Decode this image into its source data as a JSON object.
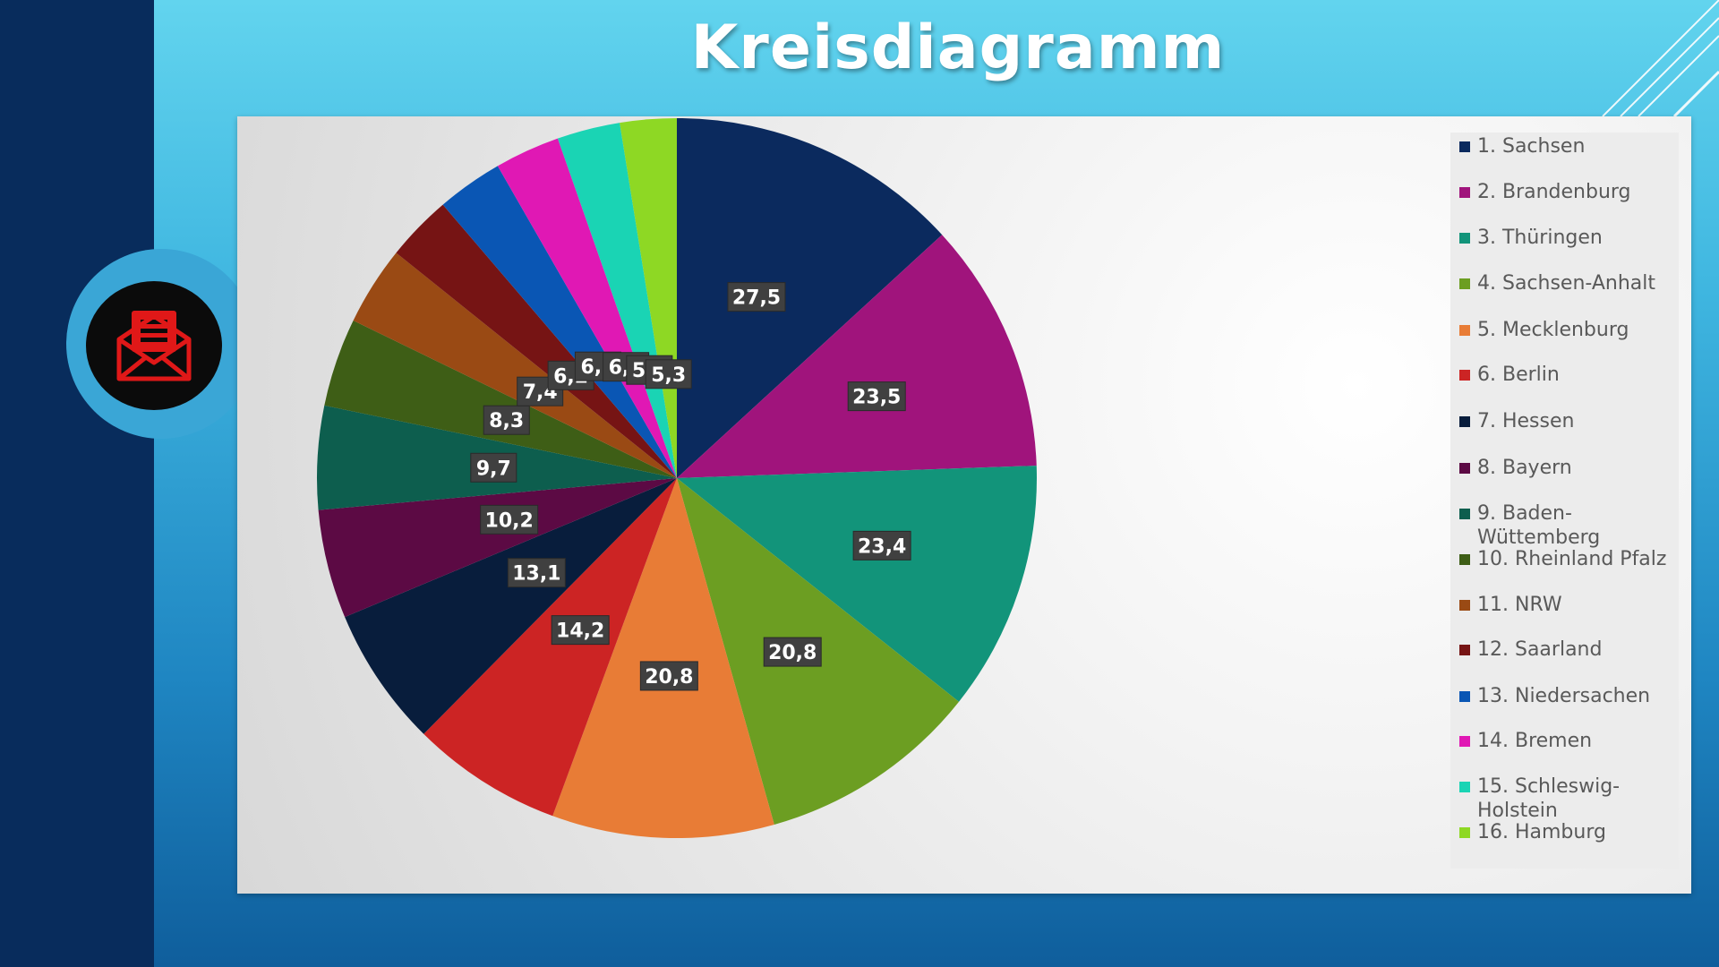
{
  "slide": {
    "title": "Kreisdiagramm",
    "icon": "envelope-letter-icon"
  },
  "colors": {
    "accent_icon": "#e01818",
    "band": "#082c5c"
  },
  "chart_data": {
    "type": "pie",
    "title": "",
    "legend_position": "right",
    "categories": [
      "1. Sachsen",
      "2. Brandenburg",
      "3. Thüringen",
      "4. Sachsen-Anhalt",
      "5. Mecklenburg",
      "6. Berlin",
      "7. Hessen",
      "8. Bayern",
      "9. Baden-Wüttemberg",
      "10. Rheinland Pfalz",
      "11. NRW",
      "12. Saarland",
      "13. Niedersachen",
      "14. Bremen",
      "15. Schleswig-Holstein",
      "16. Hamburg"
    ],
    "values": [
      27.5,
      23.5,
      23.4,
      20.8,
      20.8,
      14.2,
      13.1,
      10.2,
      9.7,
      8.3,
      7.4,
      6.2,
      6.2,
      6.1,
      5.9,
      5.3
    ],
    "data_labels": [
      "27,5",
      "23,5",
      "23,4",
      "20,8",
      "20,8",
      "14,2",
      "13,1",
      "10,2",
      "9,7",
      "8,3",
      "7,4",
      "6,2",
      "6,2",
      "6,1",
      "5,9",
      "5,3"
    ],
    "colors": [
      "#0b2a5e",
      "#a0147c",
      "#12947a",
      "#6c9e22",
      "#e87c36",
      "#cc2424",
      "#081d3c",
      "#5c0a44",
      "#0d5e4e",
      "#3e5e16",
      "#9a4a14",
      "#761414",
      "#0a56b4",
      "#e018b4",
      "#1ad4b4",
      "#8ed824"
    ],
    "legend_labels": [
      "1. Sachsen",
      "2. Brandenburg",
      "3. Thüringen",
      "4. Sachsen-Anhalt",
      "5. Mecklenburg",
      "6. Berlin",
      "7. Hessen",
      "8. Bayern",
      "9. Baden-\nWüttemberg",
      "10. Rheinland Pfalz",
      "11. NRW",
      "12. Saarland",
      "13. Niedersachen",
      "14. Bremen",
      "15. Schleswig-\nHolstein",
      "16. Hamburg"
    ]
  }
}
